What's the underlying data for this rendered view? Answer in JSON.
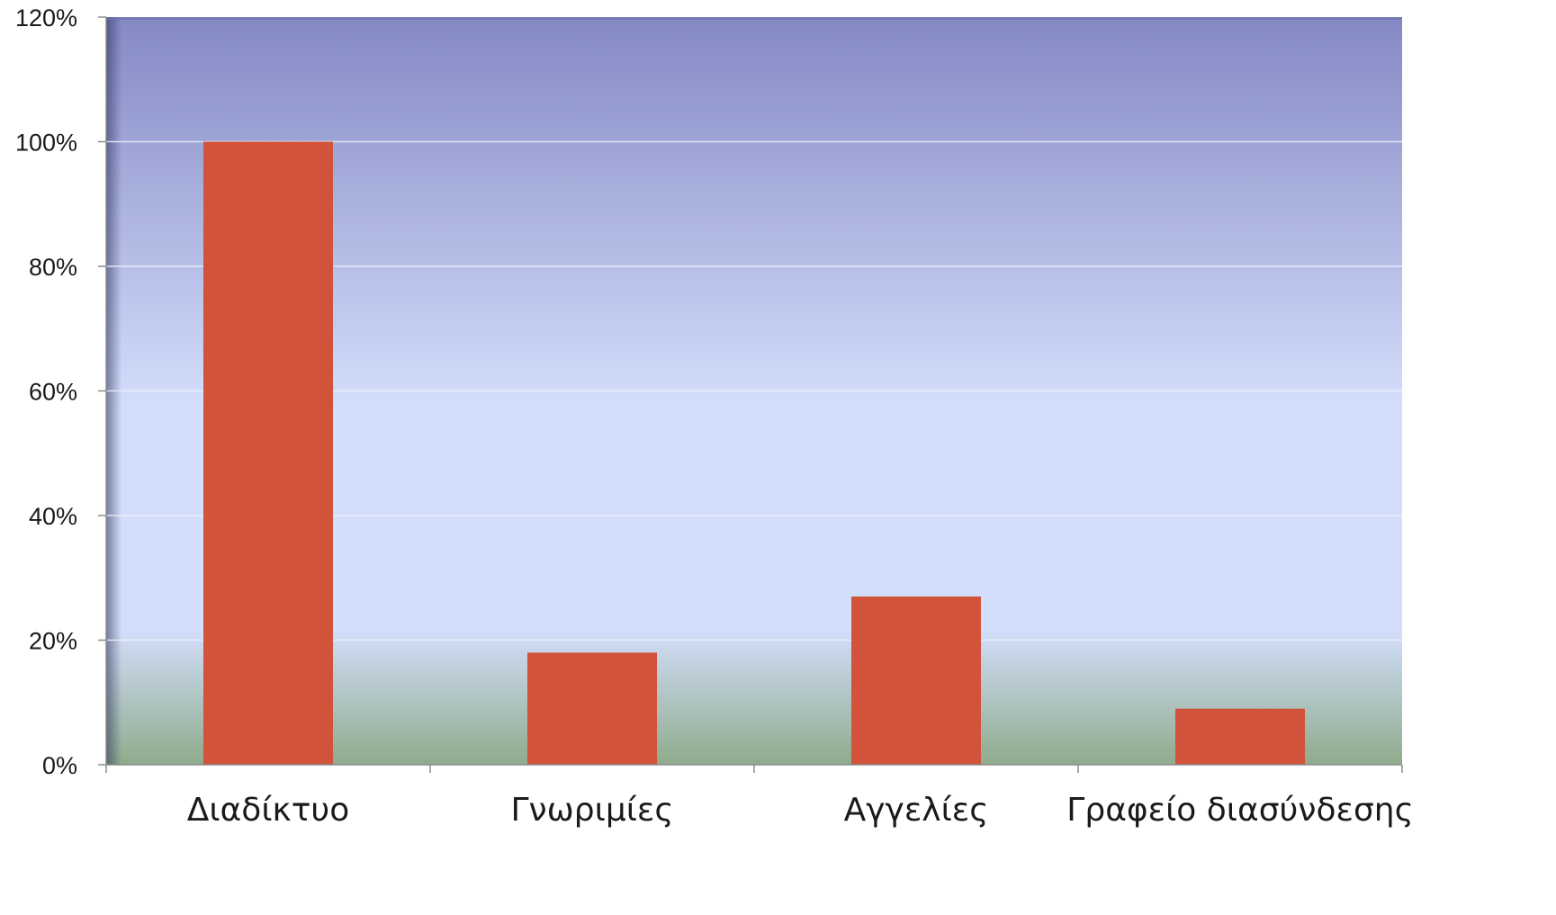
{
  "chart_data": {
    "type": "bar",
    "categories": [
      "Διαδίκτυο",
      "Γνωριμίες",
      "Αγγελίες",
      "Γραφείο διασύνδεσης"
    ],
    "values": [
      100,
      18,
      27,
      9
    ],
    "y_tick_labels": [
      "0%",
      "20%",
      "40%",
      "60%",
      "80%",
      "100%",
      "120%"
    ],
    "y_ticks": [
      0,
      20,
      40,
      60,
      80,
      100,
      120
    ],
    "ylim": [
      0,
      120
    ],
    "unit": "%",
    "grid": true,
    "legend": "none",
    "colors": {
      "bar": "#d2533b",
      "plot_top": "#8489c4",
      "plot_mid": "#d3defb",
      "plot_bottom": "#8fab8c",
      "gridline": "#eef1fb",
      "axis": "#8c8c8c"
    }
  }
}
